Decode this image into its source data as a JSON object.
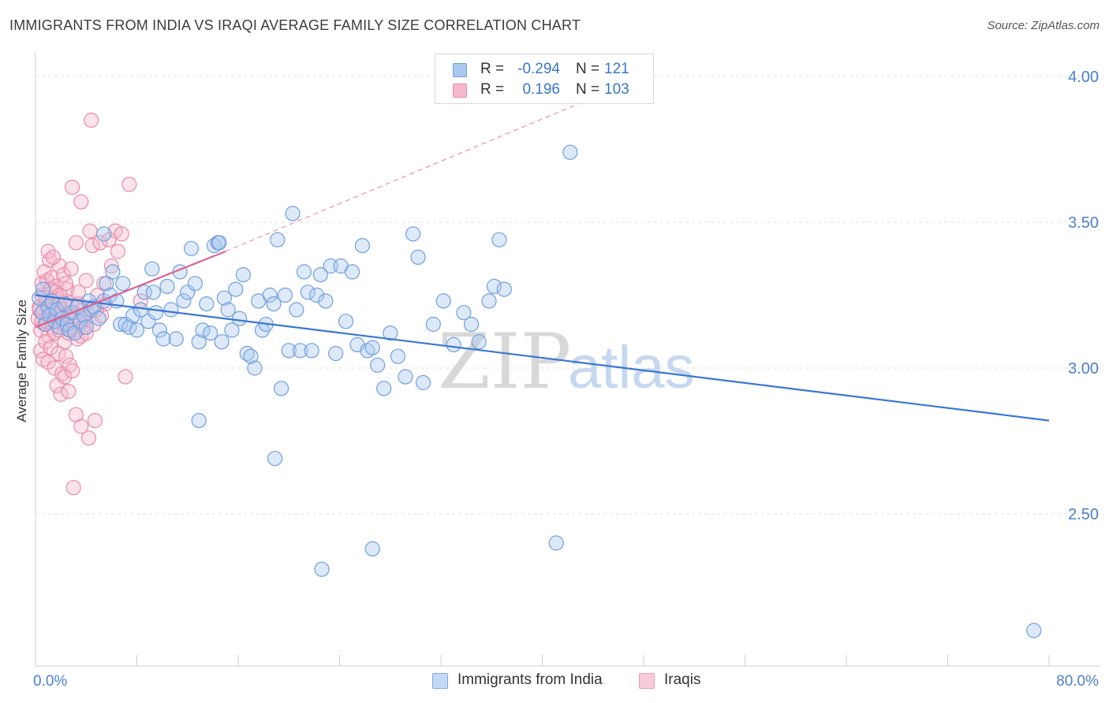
{
  "header": {
    "title": "IMMIGRANTS FROM INDIA VS IRAQI AVERAGE FAMILY SIZE CORRELATION CHART",
    "source": "Source: ZipAtlas.com"
  },
  "legend_top": {
    "rows": [
      {
        "r_label": "R =",
        "r_value": "-0.294",
        "n_label": "N =",
        "n_value": "121"
      },
      {
        "r_label": "R =",
        "r_value": "0.196",
        "n_label": "N =",
        "n_value": "103"
      }
    ]
  },
  "legend_bottom": {
    "items": [
      "Immigrants from India",
      "Iraqis"
    ]
  },
  "watermark": {
    "zip": "ZIP",
    "atlas": "atlas"
  },
  "colors": {
    "india_fill": "#aac8f0",
    "india_stroke": "#6f9fe0",
    "india_line": "#3a76d4",
    "iraq_fill": "#f5b8cb",
    "iraq_stroke": "#ea8aaa",
    "iraq_line": "#e06090",
    "axis_text": "#4a7fcf",
    "grid": "#e2e2e2"
  },
  "chart_data": {
    "type": "scatter",
    "title": "IMMIGRANTS FROM INDIA VS IRAQI AVERAGE FAMILY SIZE CORRELATION CHART",
    "xlabel": "",
    "ylabel": "Average Family Size",
    "xlim": [
      0,
      80
    ],
    "ylim": [
      2.0,
      4.1
    ],
    "x_tick_labels": [
      "0.0%",
      "80.0%"
    ],
    "y_ticks": [
      2.5,
      3.0,
      3.5,
      4.0
    ],
    "y_tick_labels": [
      "2.50",
      "3.00",
      "3.50",
      "4.00"
    ],
    "grid": true,
    "series": [
      {
        "name": "Immigrants from India",
        "r": -0.294,
        "n": 121,
        "trend": {
          "x0": 0,
          "y0": 3.25,
          "x1": 80,
          "y1": 2.82
        },
        "points": [
          [
            0.3,
            3.24
          ],
          [
            0.5,
            3.19
          ],
          [
            0.6,
            3.27
          ],
          [
            0.8,
            3.15
          ],
          [
            1.0,
            3.21
          ],
          [
            1.1,
            3.18
          ],
          [
            1.3,
            3.23
          ],
          [
            1.5,
            3.16
          ],
          [
            1.7,
            3.2
          ],
          [
            1.9,
            3.14
          ],
          [
            2.1,
            3.17
          ],
          [
            2.3,
            3.22
          ],
          [
            2.5,
            3.15
          ],
          [
            2.7,
            3.13
          ],
          [
            2.9,
            3.19
          ],
          [
            3.1,
            3.12
          ],
          [
            3.3,
            3.21
          ],
          [
            3.5,
            3.16
          ],
          [
            3.8,
            3.18
          ],
          [
            4.0,
            3.14
          ],
          [
            4.2,
            3.23
          ],
          [
            4.4,
            3.2
          ],
          [
            4.6,
            3.21
          ],
          [
            5.0,
            3.17
          ],
          [
            5.4,
            3.23
          ],
          [
            5.6,
            3.29
          ],
          [
            5.9,
            3.25
          ],
          [
            6.1,
            3.33
          ],
          [
            6.4,
            3.23
          ],
          [
            6.7,
            3.15
          ],
          [
            6.9,
            3.29
          ],
          [
            7.1,
            3.15
          ],
          [
            7.4,
            3.14
          ],
          [
            7.7,
            3.18
          ],
          [
            8.0,
            3.13
          ],
          [
            8.3,
            3.2
          ],
          [
            8.6,
            3.26
          ],
          [
            8.9,
            3.16
          ],
          [
            9.2,
            3.34
          ],
          [
            9.5,
            3.19
          ],
          [
            9.8,
            3.13
          ],
          [
            10.1,
            3.1
          ],
          [
            10.4,
            3.28
          ],
          [
            10.7,
            3.2
          ],
          [
            11.1,
            3.1
          ],
          [
            11.4,
            3.33
          ],
          [
            11.7,
            3.23
          ],
          [
            12.0,
            3.26
          ],
          [
            12.3,
            3.41
          ],
          [
            12.6,
            3.29
          ],
          [
            12.9,
            3.09
          ],
          [
            13.2,
            3.13
          ],
          [
            13.5,
            3.22
          ],
          [
            13.8,
            3.12
          ],
          [
            14.1,
            3.42
          ],
          [
            14.4,
            3.43
          ],
          [
            14.7,
            3.09
          ],
          [
            14.9,
            3.24
          ],
          [
            15.2,
            3.2
          ],
          [
            15.5,
            3.13
          ],
          [
            15.8,
            3.27
          ],
          [
            16.1,
            3.17
          ],
          [
            16.4,
            3.32
          ],
          [
            16.7,
            3.05
          ],
          [
            17.0,
            3.04
          ],
          [
            17.3,
            3.0
          ],
          [
            17.6,
            3.23
          ],
          [
            17.9,
            3.13
          ],
          [
            18.2,
            3.15
          ],
          [
            18.5,
            3.25
          ],
          [
            18.8,
            3.22
          ],
          [
            19.1,
            3.44
          ],
          [
            19.4,
            2.93
          ],
          [
            19.7,
            3.25
          ],
          [
            20.0,
            3.06
          ],
          [
            20.3,
            3.53
          ],
          [
            20.6,
            3.2
          ],
          [
            20.9,
            3.06
          ],
          [
            21.2,
            3.33
          ],
          [
            21.5,
            3.26
          ],
          [
            21.8,
            3.06
          ],
          [
            22.2,
            3.25
          ],
          [
            22.5,
            3.32
          ],
          [
            22.9,
            3.23
          ],
          [
            23.3,
            3.35
          ],
          [
            23.7,
            3.05
          ],
          [
            24.1,
            3.35
          ],
          [
            24.5,
            3.16
          ],
          [
            25.0,
            3.33
          ],
          [
            25.4,
            3.08
          ],
          [
            25.8,
            3.42
          ],
          [
            26.2,
            3.06
          ],
          [
            26.6,
            3.07
          ],
          [
            27.0,
            3.01
          ],
          [
            27.5,
            2.93
          ],
          [
            28.0,
            3.12
          ],
          [
            28.6,
            3.04
          ],
          [
            29.2,
            2.97
          ],
          [
            29.8,
            3.46
          ],
          [
            30.2,
            3.38
          ],
          [
            30.6,
            2.95
          ],
          [
            31.4,
            3.15
          ],
          [
            32.2,
            3.23
          ],
          [
            33.0,
            3.08
          ],
          [
            33.8,
            3.19
          ],
          [
            34.4,
            3.15
          ],
          [
            35.0,
            3.09
          ],
          [
            35.8,
            3.23
          ],
          [
            36.2,
            3.28
          ],
          [
            36.6,
            3.44
          ],
          [
            37.0,
            3.27
          ],
          [
            12.9,
            2.82
          ],
          [
            18.9,
            2.69
          ],
          [
            22.6,
            2.31
          ],
          [
            26.6,
            2.38
          ],
          [
            41.1,
            2.4
          ],
          [
            42.2,
            3.74
          ],
          [
            78.8,
            2.1
          ],
          [
            5.4,
            3.46
          ],
          [
            14.5,
            3.43
          ],
          [
            9.3,
            3.26
          ]
        ]
      },
      {
        "name": "Iraqis",
        "r": 0.196,
        "n": 103,
        "trend": {
          "x0": 0,
          "y0": 3.14,
          "x1": 15,
          "y1": 3.4,
          "dashed_to": {
            "x": 48,
            "y": 4.0
          }
        },
        "points": [
          [
            0.2,
            3.17
          ],
          [
            0.3,
            3.21
          ],
          [
            0.4,
            3.13
          ],
          [
            0.5,
            3.25
          ],
          [
            0.6,
            3.19
          ],
          [
            0.7,
            3.15
          ],
          [
            0.8,
            3.22
          ],
          [
            0.9,
            3.16
          ],
          [
            1.0,
            3.11
          ],
          [
            1.1,
            3.2
          ],
          [
            1.2,
            3.18
          ],
          [
            1.3,
            3.14
          ],
          [
            1.4,
            3.24
          ],
          [
            1.5,
            3.12
          ],
          [
            1.6,
            3.19
          ],
          [
            1.7,
            3.16
          ],
          [
            1.8,
            3.22
          ],
          [
            1.9,
            3.13
          ],
          [
            2.0,
            3.18
          ],
          [
            2.1,
            3.2
          ],
          [
            2.2,
            3.15
          ],
          [
            2.3,
            3.09
          ],
          [
            2.4,
            3.23
          ],
          [
            2.5,
            3.17
          ],
          [
            2.6,
            3.12
          ],
          [
            2.7,
            3.19
          ],
          [
            2.8,
            3.14
          ],
          [
            2.9,
            3.21
          ],
          [
            3.0,
            3.16
          ],
          [
            3.1,
            3.13
          ],
          [
            3.2,
            3.18
          ],
          [
            3.3,
            3.1
          ],
          [
            3.4,
            3.22
          ],
          [
            3.5,
            3.15
          ],
          [
            3.6,
            3.11
          ],
          [
            3.7,
            3.2
          ],
          [
            3.8,
            3.14
          ],
          [
            3.9,
            3.17
          ],
          [
            4.0,
            3.12
          ],
          [
            4.1,
            3.19
          ],
          [
            0.4,
            3.06
          ],
          [
            0.6,
            3.03
          ],
          [
            0.8,
            3.09
          ],
          [
            1.0,
            3.02
          ],
          [
            1.2,
            3.07
          ],
          [
            1.5,
            3.0
          ],
          [
            1.8,
            3.05
          ],
          [
            2.1,
            2.98
          ],
          [
            2.4,
            3.04
          ],
          [
            2.7,
            3.01
          ],
          [
            0.5,
            3.29
          ],
          [
            0.7,
            3.33
          ],
          [
            0.9,
            3.3
          ],
          [
            1.1,
            3.37
          ],
          [
            1.3,
            3.31
          ],
          [
            1.6,
            3.28
          ],
          [
            1.9,
            3.35
          ],
          [
            2.2,
            3.32
          ],
          [
            2.5,
            3.27
          ],
          [
            2.8,
            3.34
          ],
          [
            1.0,
            3.4
          ],
          [
            1.4,
            3.38
          ],
          [
            1.7,
            2.94
          ],
          [
            2.0,
            2.91
          ],
          [
            2.3,
            2.97
          ],
          [
            2.6,
            2.92
          ],
          [
            2.9,
            2.99
          ],
          [
            3.2,
            2.84
          ],
          [
            3.6,
            2.8
          ],
          [
            4.2,
            2.76
          ],
          [
            4.7,
            2.82
          ],
          [
            3.0,
            2.59
          ],
          [
            4.4,
            3.85
          ],
          [
            2.9,
            3.62
          ],
          [
            7.4,
            3.63
          ],
          [
            3.6,
            3.57
          ],
          [
            4.5,
            3.42
          ],
          [
            4.3,
            3.47
          ],
          [
            6.3,
            3.47
          ],
          [
            6.8,
            3.46
          ],
          [
            5.1,
            3.43
          ],
          [
            5.8,
            3.44
          ],
          [
            6.5,
            3.4
          ],
          [
            3.2,
            3.43
          ],
          [
            7.1,
            2.97
          ],
          [
            5.4,
            3.29
          ],
          [
            4.9,
            3.25
          ],
          [
            6.0,
            3.35
          ],
          [
            4.0,
            3.3
          ],
          [
            3.8,
            3.18
          ],
          [
            4.6,
            3.15
          ],
          [
            5.5,
            3.22
          ],
          [
            5.2,
            3.18
          ],
          [
            4.8,
            3.2
          ],
          [
            3.4,
            3.26
          ],
          [
            8.3,
            3.23
          ],
          [
            1.6,
            3.26
          ],
          [
            2.4,
            3.29
          ],
          [
            0.3,
            3.2
          ],
          [
            0.5,
            3.16
          ],
          [
            0.8,
            3.24
          ],
          [
            1.2,
            3.27
          ],
          [
            1.9,
            3.25
          ]
        ]
      }
    ]
  }
}
